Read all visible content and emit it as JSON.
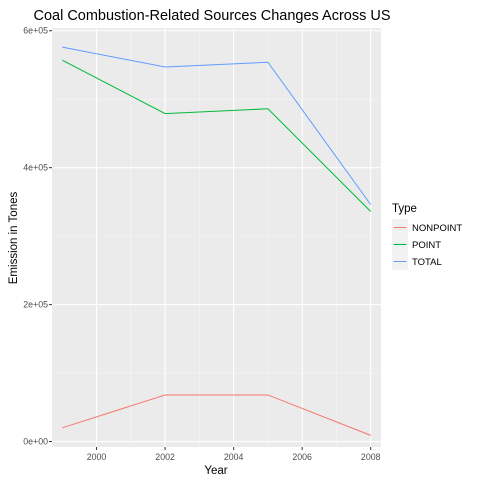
{
  "chart_data": {
    "type": "line",
    "title": "Coal Combustion-Related Sources Changes Across US",
    "xlabel": "Year",
    "ylabel": "Emission in Tones",
    "x": [
      1999,
      2002,
      2005,
      2008
    ],
    "xlim": [
      1998.7,
      2008.3
    ],
    "ylim": [
      -8000,
      604000
    ],
    "x_ticks": [
      2000,
      2002,
      2004,
      2006,
      2008
    ],
    "x_tick_labels": [
      "2000",
      "2002",
      "2004",
      "2006",
      "2008"
    ],
    "y_ticks": [
      0,
      200000,
      400000,
      600000
    ],
    "y_tick_labels": [
      "0e+00",
      "2e+05",
      "4e+05",
      "6e+05"
    ],
    "grid": true,
    "legend": {
      "title": "Type",
      "placement": "right"
    },
    "series": [
      {
        "name": "NONPOINT",
        "color": "#F8766D",
        "values": [
          20000,
          68000,
          68000,
          9000
        ]
      },
      {
        "name": "POINT",
        "color": "#00BA38",
        "values": [
          557000,
          479000,
          486000,
          336000
        ]
      },
      {
        "name": "TOTAL",
        "color": "#619CFF",
        "values": [
          576000,
          547000,
          554000,
          346000
        ]
      }
    ]
  }
}
